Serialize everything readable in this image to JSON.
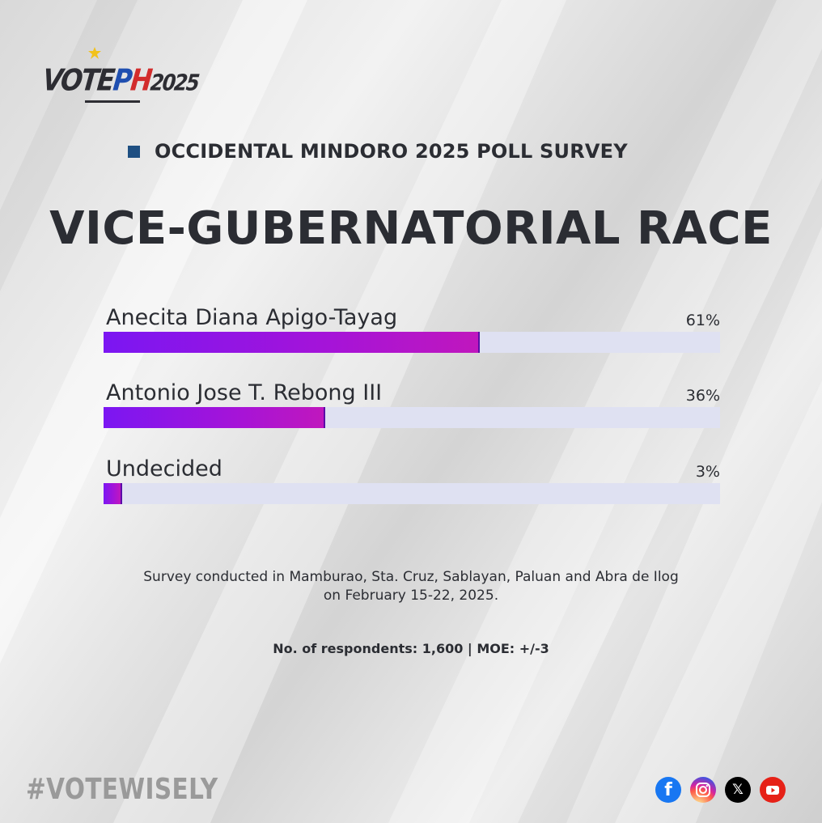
{
  "brand": {
    "logo_parts": {
      "vote": "VOTE",
      "p": "P",
      "h": "H",
      "year": "2025"
    },
    "hashtag": "#VOTEWISELY"
  },
  "header": {
    "subtitle": "OCCIDENTAL MINDORO 2025 POLL SURVEY",
    "title": "VICE-GUBERNATORIAL RACE"
  },
  "chart_data": {
    "type": "bar",
    "orientation": "horizontal",
    "categories": [
      "Anecita Diana Apigo-Tayag",
      "Antonio Jose T. Rebong III",
      "Undecided"
    ],
    "values": [
      61,
      36,
      3
    ],
    "value_labels": [
      "61%",
      "36%",
      "3%"
    ],
    "xlim": [
      0,
      100
    ],
    "title": "VICE-GUBERNATORIAL RACE",
    "xlabel": "",
    "ylabel": "",
    "grid": false
  },
  "footer": {
    "note": "Survey conducted in Mamburao, Sta. Cruz, Sablayan, Paluan and Abra de Ilog on February 15-22, 2025.",
    "respondents": "No. of respondents: 1,600 | MOE: +/-3"
  },
  "socials": {
    "icons": [
      "facebook-icon",
      "instagram-icon",
      "x-icon",
      "youtube-icon"
    ],
    "x_glyph": "𝕏"
  },
  "colors": {
    "accent_square": "#1e4f82",
    "bar_start": "#7b16f2",
    "bar_end": "#c017bd",
    "track": "#dfe1f2",
    "text": "#2b2d33"
  }
}
